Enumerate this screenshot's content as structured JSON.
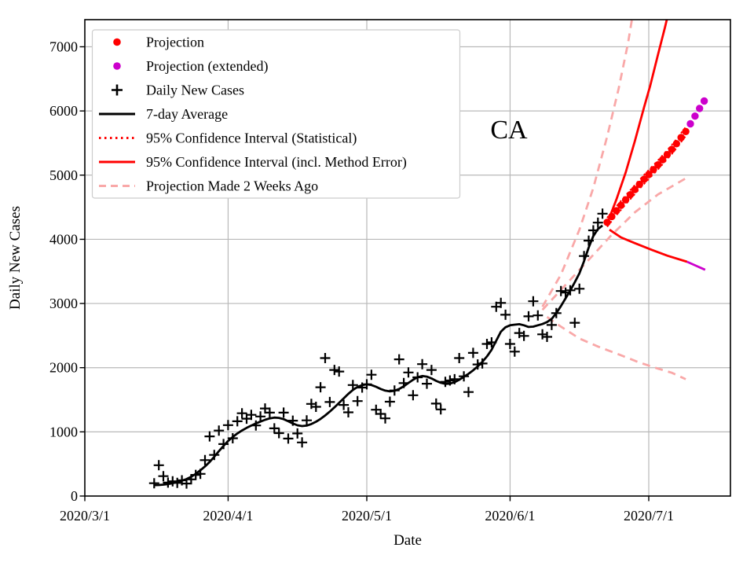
{
  "figure": {
    "background": "#ffffff"
  },
  "chart_data": {
    "type": "line",
    "title": "",
    "annotation": "CA",
    "xlabel": "Date",
    "ylabel": "Daily New Cases",
    "x_unit": "days since 2020/3/1",
    "xlim": [
      0,
      139.7
    ],
    "ylim": [
      0,
      7431
    ],
    "grid": true,
    "legend_position": "upper left",
    "x_ticks": [
      {
        "day": 0,
        "label": "2020/3/1"
      },
      {
        "day": 31,
        "label": "2020/4/1"
      },
      {
        "day": 61,
        "label": "2020/5/1"
      },
      {
        "day": 92,
        "label": "2020/6/1"
      },
      {
        "day": 122,
        "label": "2020/7/1"
      }
    ],
    "y_ticks": [
      0,
      1000,
      2000,
      3000,
      4000,
      5000,
      6000,
      7000
    ],
    "colors": {
      "projection": "#ff0000",
      "projection_extended": "#cc00cc",
      "daily_cases": "#000000",
      "average": "#000000",
      "confidence_interval": "#ff0000",
      "old_projection": "#f9a8a8",
      "grid": "#b8b8b8",
      "legend_border": "#cccccc"
    },
    "legend": [
      {
        "label": "Projection",
        "handle": "dot",
        "color": "#ff0000"
      },
      {
        "label": "Projection (extended)",
        "handle": "dot",
        "color": "#cc00cc"
      },
      {
        "label": "Daily New Cases",
        "handle": "plus",
        "color": "#000000"
      },
      {
        "label": "7-day Average",
        "handle": "line",
        "color": "#000000"
      },
      {
        "label": "95% Confidence Interval (Statistical)",
        "handle": "dotted",
        "color": "#ff0000"
      },
      {
        "label": "95% Confidence Interval (incl. Method Error)",
        "handle": "line",
        "color": "#ff0000"
      },
      {
        "label": "Projection Made 2 Weeks Ago",
        "handle": "dashed",
        "color": "#f9a8a8"
      }
    ],
    "series": {
      "daily_new_cases": {
        "start_day": 15,
        "values": [
          200,
          480,
          310,
          210,
          230,
          205,
          245,
          195,
          260,
          330,
          345,
          560,
          930,
          640,
          1020,
          810,
          1105,
          900,
          1165,
          1290,
          1205,
          1265,
          1100,
          1240,
          1365,
          1300,
          1055,
          980,
          1300,
          895,
          1175,
          975,
          835,
          1180,
          1435,
          1390,
          1695,
          2150,
          1465,
          1965,
          1940,
          1420,
          1305,
          1730,
          1480,
          1690,
          1740,
          1890,
          1345,
          1280,
          1210,
          1470,
          1645,
          2130,
          1760,
          1925,
          1570,
          1850,
          2055,
          1750,
          1965,
          1440,
          1350,
          1780,
          1800,
          1820,
          2150,
          1865,
          1620,
          2230,
          2050,
          2065,
          2370,
          2395,
          2950,
          3010,
          2825,
          2370,
          2250,
          2540,
          2495,
          2800,
          3035,
          2815,
          2520,
          2480,
          2665,
          2850,
          3195,
          3170,
          3205,
          2700,
          3230,
          3740,
          3980,
          4140,
          4260,
          4400
        ]
      },
      "avg7": {
        "start_day": 15,
        "values": [
          170,
          172,
          178,
          188,
          200,
          218,
          240,
          265,
          300,
          345,
          400,
          462,
          530,
          612,
          700,
          782,
          858,
          920,
          975,
          1022,
          1062,
          1098,
          1130,
          1160,
          1188,
          1210,
          1222,
          1218,
          1198,
          1165,
          1130,
          1102,
          1090,
          1098,
          1122,
          1158,
          1202,
          1255,
          1315,
          1382,
          1452,
          1522,
          1592,
          1652,
          1700,
          1728,
          1740,
          1730,
          1702,
          1668,
          1642,
          1630,
          1640,
          1668,
          1710,
          1762,
          1812,
          1852,
          1870,
          1860,
          1832,
          1795,
          1765,
          1748,
          1752,
          1775,
          1812,
          1858,
          1905,
          1958,
          2020,
          2090,
          2175,
          2280,
          2420,
          2560,
          2630,
          2660,
          2670,
          2678,
          2660,
          2635,
          2640,
          2660,
          2680,
          2710,
          2760,
          2850,
          2960,
          3080,
          3200,
          3330,
          3470,
          3660,
          3870,
          4050,
          4160,
          4215
        ]
      },
      "projection": {
        "start_day": 113,
        "values": [
          4265,
          4355,
          4445,
          4530,
          4615,
          4695,
          4775,
          4855,
          4935,
          5010,
          5085,
          5160,
          5240,
          5320,
          5400,
          5490,
          5585,
          5680
        ]
      },
      "projection_extended": {
        "start_day": 131,
        "values": [
          5800,
          5920,
          6040,
          6155
        ]
      },
      "ci_statistical_offset": 70,
      "ci_method_upper": {
        "points": [
          [
            113.3,
            4300
          ],
          [
            115,
            4620
          ],
          [
            117,
            5040
          ],
          [
            119,
            5530
          ],
          [
            121,
            6060
          ],
          [
            122.3,
            6390
          ],
          [
            124,
            6880
          ],
          [
            125.5,
            7300
          ],
          [
            127,
            7750
          ]
        ]
      },
      "ci_method_lower": {
        "points": [
          [
            113.5,
            4150
          ],
          [
            116,
            4030
          ],
          [
            119,
            3940
          ],
          [
            122.7,
            3835
          ],
          [
            126,
            3745
          ],
          [
            130.3,
            3650
          ]
        ]
      },
      "ci_method_lower_extended": {
        "points": [
          [
            130.3,
            3650
          ],
          [
            134.2,
            3525
          ]
        ]
      },
      "old_projection_center": {
        "points": [
          [
            99,
            2900
          ],
          [
            104,
            3290
          ],
          [
            109,
            3680
          ],
          [
            114,
            4070
          ],
          [
            119,
            4420
          ],
          [
            124,
            4700
          ],
          [
            130,
            4950
          ]
        ]
      },
      "old_projection_upper": {
        "points": [
          [
            99,
            2950
          ],
          [
            103,
            3450
          ],
          [
            107,
            4150
          ],
          [
            110,
            4800
          ],
          [
            113,
            5600
          ],
          [
            115.5,
            6350
          ],
          [
            117.5,
            7050
          ],
          [
            119,
            7700
          ]
        ]
      },
      "old_projection_lower": {
        "points": [
          [
            100,
            2790
          ],
          [
            103,
            2640
          ],
          [
            107,
            2455
          ],
          [
            111,
            2330
          ],
          [
            115.4,
            2210
          ],
          [
            120,
            2080
          ],
          [
            124,
            1985
          ],
          [
            127,
            1920
          ],
          [
            130,
            1820
          ]
        ]
      }
    }
  }
}
